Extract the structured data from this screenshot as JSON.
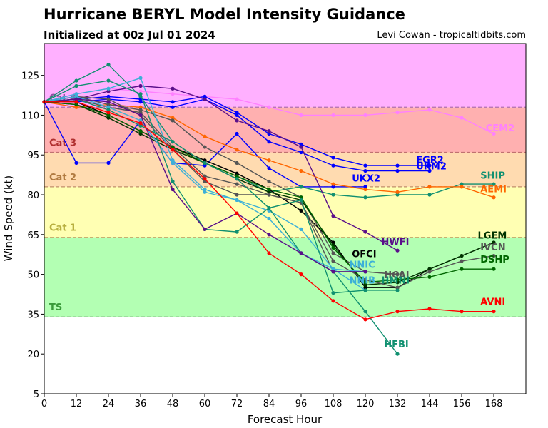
{
  "chart_data": {
    "type": "line",
    "title": "Hurricane BERYL Model Intensity Guidance",
    "subtitle": "Initialized at 00z Jul 01 2024",
    "credit": "Levi Cowan - tropicaltidbits.com",
    "xlabel": "Forecast Hour",
    "ylabel": "Wind Speed (kt)",
    "xlim": [
      0,
      180
    ],
    "ylim": [
      5,
      137
    ],
    "xticks": [
      "0",
      "12",
      "24",
      "36",
      "48",
      "60",
      "72",
      "84",
      "96",
      "108",
      "120",
      "132",
      "144",
      "156",
      "168"
    ],
    "yticks": [
      "5",
      "20",
      "35",
      "50",
      "65",
      "80",
      "95",
      "110",
      "125"
    ],
    "grid": false,
    "bands": [
      {
        "name": "TS",
        "label": "TS",
        "from": 34,
        "to": 64,
        "fill": "#b3ffb3",
        "text": "#3a9a3a",
        "line": "#88bb88"
      },
      {
        "name": "Cat 1",
        "label": "Cat 1",
        "from": 64,
        "to": 83,
        "fill": "#ffffb3",
        "text": "#b8b040",
        "line": "#c8b070"
      },
      {
        "name": "Cat 2",
        "label": "Cat 2",
        "from": 83,
        "to": 96,
        "fill": "#ffdbb0",
        "text": "#b07a40",
        "line": "#c0906a"
      },
      {
        "name": "Cat 3",
        "label": "Cat 3",
        "from": 96,
        "to": 113,
        "fill": "#ffb0b0",
        "text": "#b03030",
        "line": "#c07070"
      },
      {
        "name": "Cat 4",
        "label": "Cat 4",
        "from": 113,
        "to": 137,
        "fill": "#ffb0ff",
        "text": "#9050a0",
        "line": "#b070b0"
      }
    ],
    "series": [
      {
        "name": "CEM2",
        "label": "CEM2",
        "color": "#ff80ff",
        "x": [
          0,
          12,
          24,
          36,
          48,
          60,
          72,
          84,
          96,
          108,
          120,
          132,
          144,
          156,
          168
        ],
        "values": [
          115,
          118,
          120,
          119,
          118,
          117,
          116,
          113,
          110,
          110,
          110,
          111,
          112,
          109,
          103
        ],
        "label_x": 165,
        "label_y": 104
      },
      {
        "name": "EGR2",
        "label": "EGR2",
        "color": "#0000ff",
        "x": [
          0,
          12,
          24,
          36,
          48,
          60,
          72,
          84,
          96,
          108,
          120,
          132,
          144
        ],
        "values": [
          115,
          116,
          117,
          116,
          115,
          117,
          111,
          103,
          99,
          94,
          91,
          91,
          91
        ],
        "label_x": 139,
        "label_y": 92
      },
      {
        "name": "UKM2",
        "label": "UKM2",
        "color": "#0000ff",
        "x": [
          0,
          12,
          24,
          36,
          48,
          60,
          72,
          84,
          96,
          108,
          120,
          132,
          144
        ],
        "values": [
          115,
          115,
          116,
          115,
          113,
          116,
          110,
          100,
          96,
          91,
          89,
          89,
          89
        ],
        "label_x": 139,
        "label_y": 89.5
      },
      {
        "name": "UKX2",
        "label": "UKX2",
        "color": "#0000ff",
        "x": [
          0,
          12,
          24,
          36,
          48,
          60,
          72,
          84,
          96,
          108,
          120
        ],
        "values": [
          115,
          92,
          92,
          108,
          92,
          91,
          103,
          90,
          83,
          83,
          83
        ],
        "label_x": 115,
        "label_y": 85
      },
      {
        "name": "SHIP",
        "label": "SHIP",
        "color": "#109070",
        "x": [
          0,
          12,
          24,
          36,
          48,
          60,
          72,
          84,
          96,
          108,
          120,
          132,
          144,
          156,
          168
        ],
        "values": [
          115,
          123,
          129,
          117,
          100,
          92,
          87,
          81,
          83,
          80,
          79,
          80,
          80,
          84,
          84
        ],
        "label_x": 163,
        "label_y": 86
      },
      {
        "name": "AEMI",
        "label": "AEMI",
        "color": "#ff6600",
        "x": [
          0,
          12,
          24,
          36,
          48,
          60,
          72,
          84,
          96,
          108,
          120,
          132,
          144,
          156,
          168
        ],
        "values": [
          115,
          113,
          114,
          113,
          109,
          102,
          97,
          93,
          89,
          84,
          82,
          81,
          83,
          83,
          79
        ],
        "label_x": 163,
        "label_y": 81
      },
      {
        "name": "GRAY1",
        "label": "",
        "color": "#555555",
        "x": [
          0,
          12,
          24,
          36,
          48,
          60,
          72,
          84,
          96,
          108,
          120,
          132
        ],
        "values": [
          115,
          117,
          114,
          112,
          108,
          98,
          92,
          85,
          79,
          58,
          51,
          50
        ],
        "label_x": null,
        "label_y": null
      },
      {
        "name": "HWFI",
        "label": "HWFI",
        "color": "#5a0f8a",
        "x": [
          0,
          12,
          24,
          36,
          48,
          60,
          72,
          84,
          96,
          108,
          120,
          132
        ],
        "values": [
          115,
          116,
          119,
          121,
          120,
          116,
          108,
          104,
          98,
          72,
          66,
          59
        ],
        "label_x": 126,
        "label_y": 61
      },
      {
        "name": "OFCI",
        "label": "OFCI",
        "color": "#000000",
        "x": [
          0,
          12,
          24,
          36,
          48,
          60,
          72,
          84,
          96,
          108,
          120,
          132,
          144,
          156,
          168
        ],
        "values": [
          115,
          115,
          110,
          104,
          98,
          93,
          88,
          82,
          74,
          62,
          45,
          45,
          52,
          57,
          62
        ],
        "label_x": 115,
        "label_y": 56.5
      },
      {
        "name": "LGEM",
        "label": "LGEM",
        "color": "#003300",
        "x": [
          0,
          12,
          24,
          36,
          48,
          60,
          72,
          84,
          96,
          108,
          120,
          132,
          144,
          156,
          168
        ],
        "values": [
          115,
          114,
          109,
          103,
          97,
          92,
          86,
          81,
          78,
          61,
          46,
          47,
          52,
          57,
          62
        ],
        "label_x": 162,
        "label_y": 63.5
      },
      {
        "name": "IVCN",
        "label": "IVCN",
        "color": "#555555",
        "x": [
          0,
          12,
          24,
          36,
          48,
          60,
          72,
          84,
          96,
          108,
          120,
          132,
          144,
          156,
          168
        ],
        "values": [
          115,
          116,
          113,
          111,
          98,
          87,
          84,
          80,
          77,
          55,
          48,
          45,
          51,
          55,
          57
        ],
        "label_x": 163,
        "label_y": 59
      },
      {
        "name": "DSHP",
        "label": "DSHP",
        "color": "#006600",
        "x": [
          0,
          12,
          24,
          36,
          48,
          60,
          72,
          84,
          96,
          108,
          120,
          132,
          144,
          156,
          168
        ],
        "values": [
          115,
          114,
          110,
          104,
          98,
          92,
          87,
          82,
          79,
          60,
          47,
          48,
          49,
          52,
          52
        ],
        "label_x": 163,
        "label_y": 54.5
      },
      {
        "name": "HCAI",
        "label": "HCAI",
        "color": "#555555",
        "x": [
          0,
          12,
          24,
          36,
          48,
          60,
          72,
          84,
          96,
          108,
          120,
          132
        ],
        "values": [
          115,
          117,
          116,
          110,
          97,
          85,
          80,
          80,
          77,
          51,
          51,
          50
        ],
        "label_x": 127,
        "label_y": 48.5
      },
      {
        "name": "NNIC",
        "label": "NNIC",
        "color": "#3cb0d8",
        "x": [
          0,
          12,
          24,
          36,
          48,
          60,
          72,
          84,
          96,
          108,
          120
        ],
        "values": [
          115,
          118,
          120,
          124,
          93,
          82,
          78,
          74,
          67,
          52,
          51
        ],
        "label_x": 114,
        "label_y": 52.5
      },
      {
        "name": "NNIB",
        "label": "NNIB",
        "color": "#3cb0d8",
        "x": [
          0,
          12,
          24,
          36,
          48,
          60,
          72,
          84,
          96,
          108,
          120
        ],
        "values": [
          115,
          117,
          113,
          108,
          92,
          81,
          78,
          71,
          58,
          52,
          44
        ],
        "label_x": 114,
        "label_y": 46.5
      },
      {
        "name": "HMNI",
        "label": "HMNI",
        "color": "#109070",
        "x": [
          0,
          12,
          24,
          36,
          48,
          60,
          72,
          84,
          96,
          108,
          120,
          132
        ],
        "values": [
          115,
          121,
          123,
          118,
          85,
          67,
          66,
          75,
          78,
          43,
          44,
          44
        ],
        "label_x": 126,
        "label_y": 46.5
      },
      {
        "name": "HFBI",
        "label": "HFBI",
        "color": "#109070",
        "x": [
          0,
          12,
          24,
          36,
          48,
          60,
          72,
          84,
          96,
          108,
          120,
          132
        ],
        "values": [
          115,
          116,
          112,
          106,
          100,
          92,
          86,
          75,
          58,
          51,
          36,
          20
        ],
        "label_x": 127,
        "label_y": 22.5
      },
      {
        "name": "PURPLE2",
        "label": "",
        "color": "#5a0f8a",
        "x": [
          0,
          12,
          24,
          36,
          48,
          60,
          72,
          84,
          96,
          108,
          120
        ],
        "values": [
          115,
          116,
          115,
          110,
          82,
          67,
          73,
          65,
          58,
          51,
          51
        ],
        "label_x": null,
        "label_y": null
      },
      {
        "name": "AVNI",
        "label": "AVNI",
        "color": "#ff0000",
        "x": [
          0,
          12,
          24,
          36,
          48,
          60,
          72,
          84,
          96,
          108,
          120,
          132,
          144,
          156,
          168
        ],
        "values": [
          115,
          115,
          111,
          107,
          97,
          86,
          73,
          58,
          50,
          40,
          33,
          36,
          37,
          36,
          36
        ],
        "label_x": 163,
        "label_y": 38.5
      }
    ]
  }
}
